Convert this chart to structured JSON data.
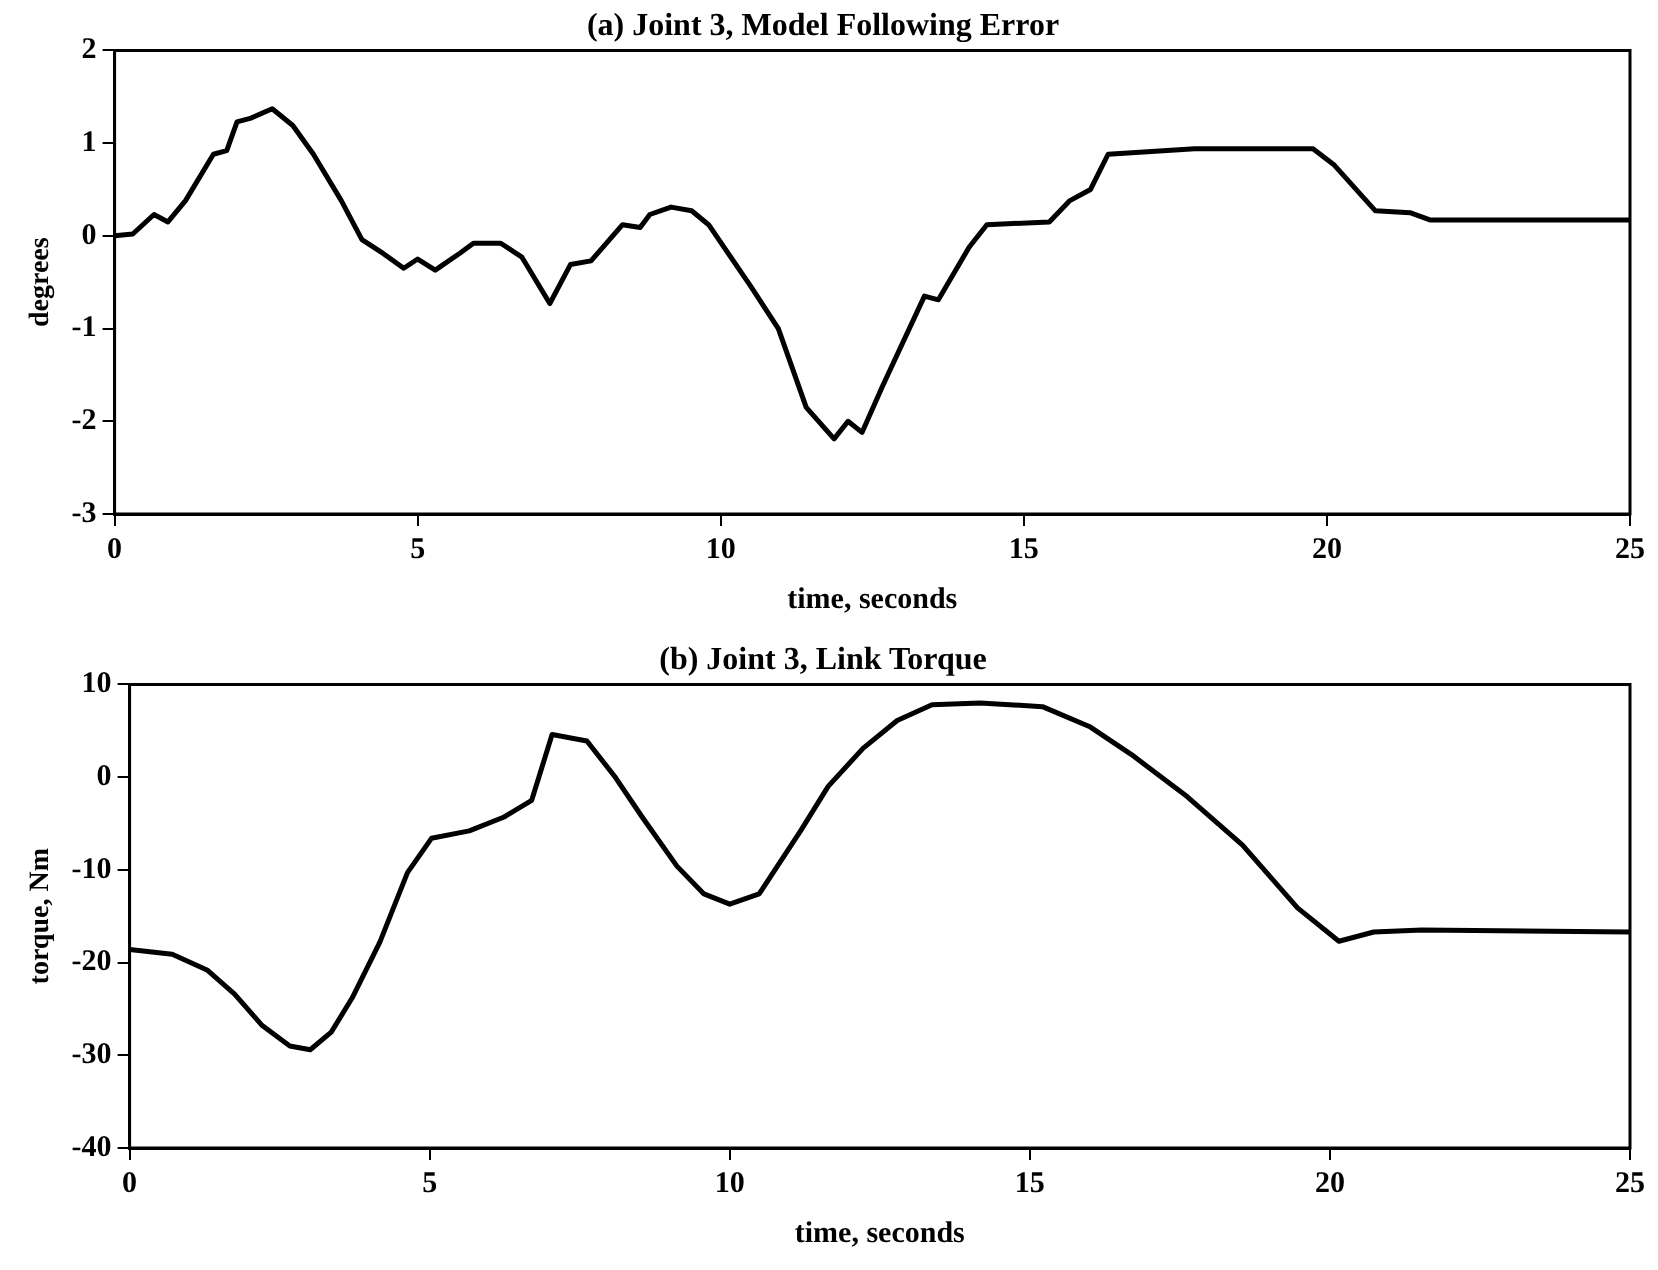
{
  "chart_data": [
    {
      "type": "line",
      "title": "(a) Joint 3, Model Following Error",
      "xlabel": "time, seconds",
      "ylabel": "degrees",
      "marker": "none",
      "xlim": [
        0,
        25
      ],
      "xticks": [
        0,
        5,
        10,
        15,
        20,
        25
      ],
      "ylim": [
        -3,
        2
      ],
      "yticks": [
        -3,
        -2,
        -1,
        0,
        1,
        2
      ],
      "series": [
        {
          "color": "#000000",
          "x": [
            0,
            0.3,
            0.65,
            0.88,
            1.17,
            1.63,
            1.85,
            2.02,
            2.25,
            2.6,
            2.94,
            3.28,
            3.74,
            4.08,
            4.43,
            4.77,
            5.0,
            5.29,
            5.69,
            5.92,
            6.37,
            6.72,
            7.18,
            7.52,
            7.86,
            8.38,
            8.67,
            8.83,
            9.18,
            9.52,
            9.8,
            10.49,
            10.95,
            11.41,
            11.87,
            12.1,
            12.33,
            12.67,
            13.36,
            13.59,
            14.1,
            14.39,
            15.42,
            15.76,
            16.1,
            16.39,
            17.82,
            19.77,
            20.11,
            20.8,
            21.37,
            21.71,
            25
          ],
          "values": [
            0,
            0.02,
            0.23,
            0.15,
            0.38,
            0.88,
            0.92,
            1.23,
            1.27,
            1.37,
            1.19,
            0.88,
            0.38,
            -0.04,
            -0.19,
            -0.35,
            -0.25,
            -0.37,
            -0.19,
            -0.08,
            -0.08,
            -0.23,
            -0.73,
            -0.31,
            -0.27,
            0.12,
            0.09,
            0.23,
            0.31,
            0.27,
            0.12,
            -0.54,
            -1.0,
            -1.85,
            -2.19,
            -2.0,
            -2.12,
            -1.62,
            -0.65,
            -0.69,
            -0.12,
            0.12,
            0.15,
            0.38,
            0.5,
            0.88,
            0.94,
            0.94,
            0.77,
            0.27,
            0.25,
            0.17,
            0.17
          ]
        }
      ]
    },
    {
      "type": "line",
      "title": "(b) Joint 3, Link Torque",
      "xlabel": "time, seconds",
      "ylabel": "torque, Nm",
      "marker": "none",
      "xlim": [
        0,
        25
      ],
      "xticks": [
        0,
        5,
        10,
        15,
        20,
        25
      ],
      "ylim": [
        -40,
        10
      ],
      "yticks": [
        -40,
        -30,
        -20,
        -10,
        0,
        10
      ],
      "series": [
        {
          "color": "#000000",
          "x": [
            0,
            0.71,
            1.29,
            1.75,
            2.21,
            2.67,
            3.01,
            3.36,
            3.71,
            4.17,
            4.63,
            5.03,
            5.66,
            6.24,
            6.7,
            7.04,
            7.62,
            8.08,
            8.54,
            9.12,
            9.57,
            10.0,
            10.49,
            11.18,
            11.64,
            12.22,
            12.79,
            13.37,
            14.17,
            15.21,
            16.01,
            16.7,
            17.62,
            18.54,
            19.46,
            20.15,
            20.73,
            21.53,
            25
          ],
          "values": [
            -18.6,
            -19.1,
            -20.8,
            -23.4,
            -26.8,
            -29.0,
            -29.4,
            -27.5,
            -23.8,
            -17.8,
            -10.3,
            -6.6,
            -5.8,
            -4.3,
            -2.5,
            4.6,
            3.9,
            0.1,
            -4.3,
            -9.6,
            -12.6,
            -13.7,
            -12.6,
            -5.8,
            -1.0,
            3.1,
            6.1,
            7.8,
            8.0,
            7.6,
            5.4,
            2.4,
            -2.1,
            -7.3,
            -14.1,
            -17.7,
            -16.7,
            -16.5,
            -16.7
          ]
        }
      ]
    }
  ]
}
